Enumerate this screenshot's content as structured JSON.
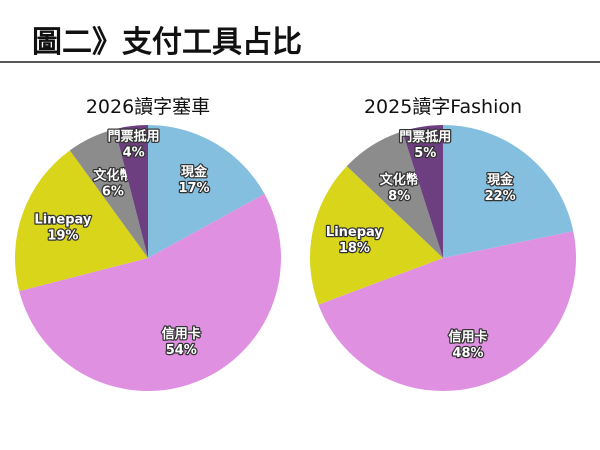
{
  "header": {
    "title": "圖二》支付工具占比"
  },
  "chart_data": [
    {
      "type": "pie",
      "title": "2026讀字塞車",
      "categories": [
        "現金",
        "信用卡",
        "Linepay",
        "文化幣",
        "門票抵用"
      ],
      "values": [
        17,
        54,
        19,
        6,
        4
      ],
      "value_labels": [
        "17%",
        "54%",
        "19%",
        "6%",
        "4%"
      ],
      "colors": [
        "#85bfe0",
        "#df90e0",
        "#d9d51a",
        "#8c8c8c",
        "#6e3f80"
      ]
    },
    {
      "type": "pie",
      "title": "2025讀字Fashion",
      "categories": [
        "現金",
        "信用卡",
        "Linepay",
        "文化幣",
        "門票抵用"
      ],
      "values": [
        22,
        48,
        18,
        8,
        5
      ],
      "value_labels": [
        "22%",
        "48%",
        "18%",
        "8%",
        "5%"
      ],
      "colors": [
        "#85bfe0",
        "#df90e0",
        "#d9d51a",
        "#8c8c8c",
        "#6e3f80"
      ]
    }
  ]
}
